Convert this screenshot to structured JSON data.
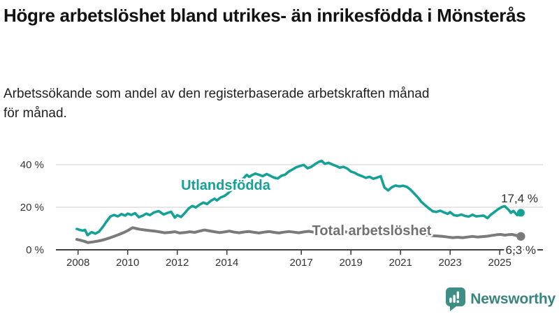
{
  "chart_data": {
    "type": "line",
    "title": "Högre arbetslöshet bland utrikes- än inrikesfödda i Mönsterås",
    "subtitle": "Arbetssökande som andel av den registerbaserade arbetskraften månad för månad.",
    "grid": "horizontal",
    "x_axis": {
      "ticks": [
        2008,
        2010,
        2012,
        2014,
        2017,
        2019,
        2021,
        2023,
        2025
      ],
      "range": [
        2007.9,
        2026.2
      ]
    },
    "y_axis": {
      "ticks": [
        0,
        20,
        40
      ],
      "tick_labels": [
        "0 %",
        "20 %",
        "40 %"
      ],
      "range": [
        0,
        44
      ],
      "unit": "%"
    },
    "series": [
      {
        "name": "Utlandsfödda",
        "color": "#15A195",
        "end_label": "17,4 %",
        "end_value": 17.4,
        "points": [
          [
            2007.95,
            9.8
          ],
          [
            2008.08,
            9.3
          ],
          [
            2008.2,
            9.0
          ],
          [
            2008.28,
            9.4
          ],
          [
            2008.38,
            6.9
          ],
          [
            2008.55,
            8.3
          ],
          [
            2008.7,
            7.6
          ],
          [
            2008.85,
            8.6
          ],
          [
            2009.0,
            10.8
          ],
          [
            2009.15,
            13.3
          ],
          [
            2009.3,
            15.6
          ],
          [
            2009.45,
            16.4
          ],
          [
            2009.6,
            15.7
          ],
          [
            2009.75,
            16.8
          ],
          [
            2009.9,
            16.1
          ],
          [
            2010.0,
            17.0
          ],
          [
            2010.15,
            16.4
          ],
          [
            2010.3,
            17.2
          ],
          [
            2010.45,
            15.3
          ],
          [
            2010.6,
            16.0
          ],
          [
            2010.75,
            17.0
          ],
          [
            2010.9,
            16.3
          ],
          [
            2011.05,
            17.5
          ],
          [
            2011.25,
            18.2
          ],
          [
            2011.45,
            16.6
          ],
          [
            2011.6,
            17.3
          ],
          [
            2011.75,
            17.9
          ],
          [
            2011.9,
            15.1
          ],
          [
            2012.0,
            16.3
          ],
          [
            2012.15,
            15.4
          ],
          [
            2012.3,
            17.2
          ],
          [
            2012.45,
            19.3
          ],
          [
            2012.6,
            20.6
          ],
          [
            2012.75,
            19.9
          ],
          [
            2012.9,
            21.2
          ],
          [
            2013.05,
            22.2
          ],
          [
            2013.2,
            21.5
          ],
          [
            2013.35,
            23.0
          ],
          [
            2013.5,
            24.0
          ],
          [
            2013.6,
            23.2
          ],
          [
            2013.75,
            24.6
          ],
          [
            2013.9,
            25.3
          ],
          [
            2014.05,
            26.6
          ],
          [
            2014.2,
            28.3
          ],
          [
            2014.4,
            30.6
          ],
          [
            2014.6,
            32.8
          ],
          [
            2014.8,
            35.2
          ],
          [
            2014.9,
            34.3
          ],
          [
            2015.0,
            35.0
          ],
          [
            2015.15,
            35.8
          ],
          [
            2015.3,
            35.2
          ],
          [
            2015.45,
            34.6
          ],
          [
            2015.6,
            35.6
          ],
          [
            2015.75,
            34.8
          ],
          [
            2015.9,
            33.9
          ],
          [
            2016.05,
            33.5
          ],
          [
            2016.2,
            34.8
          ],
          [
            2016.35,
            35.3
          ],
          [
            2016.5,
            36.8
          ],
          [
            2016.65,
            37.8
          ],
          [
            2016.8,
            38.8
          ],
          [
            2016.95,
            39.4
          ],
          [
            2017.1,
            39.9
          ],
          [
            2017.25,
            38.3
          ],
          [
            2017.4,
            39.0
          ],
          [
            2017.55,
            40.2
          ],
          [
            2017.7,
            41.3
          ],
          [
            2017.82,
            41.8
          ],
          [
            2017.95,
            40.4
          ],
          [
            2018.1,
            40.9
          ],
          [
            2018.25,
            40.1
          ],
          [
            2018.4,
            39.4
          ],
          [
            2018.55,
            38.6
          ],
          [
            2018.7,
            39.0
          ],
          [
            2018.85,
            38.2
          ],
          [
            2019.0,
            36.8
          ],
          [
            2019.15,
            36.2
          ],
          [
            2019.3,
            35.2
          ],
          [
            2019.45,
            34.6
          ],
          [
            2019.6,
            33.8
          ],
          [
            2019.75,
            34.3
          ],
          [
            2019.9,
            33.4
          ],
          [
            2020.05,
            33.9
          ],
          [
            2020.2,
            34.6
          ],
          [
            2020.35,
            29.3
          ],
          [
            2020.5,
            27.9
          ],
          [
            2020.65,
            29.4
          ],
          [
            2020.8,
            30.2
          ],
          [
            2020.95,
            29.8
          ],
          [
            2021.1,
            30.1
          ],
          [
            2021.25,
            29.6
          ],
          [
            2021.4,
            28.3
          ],
          [
            2021.55,
            26.5
          ],
          [
            2021.7,
            24.6
          ],
          [
            2021.85,
            22.4
          ],
          [
            2022.0,
            20.9
          ],
          [
            2022.15,
            19.4
          ],
          [
            2022.3,
            18.1
          ],
          [
            2022.45,
            17.8
          ],
          [
            2022.6,
            18.4
          ],
          [
            2022.75,
            17.6
          ],
          [
            2022.9,
            16.9
          ],
          [
            2023.0,
            17.7
          ],
          [
            2023.15,
            16.3
          ],
          [
            2023.3,
            16.0
          ],
          [
            2023.45,
            16.6
          ],
          [
            2023.6,
            15.9
          ],
          [
            2023.75,
            15.6
          ],
          [
            2023.9,
            16.5
          ],
          [
            2024.05,
            15.7
          ],
          [
            2024.2,
            15.9
          ],
          [
            2024.35,
            16.1
          ],
          [
            2024.5,
            14.9
          ],
          [
            2024.65,
            16.6
          ],
          [
            2024.8,
            17.9
          ],
          [
            2024.95,
            19.2
          ],
          [
            2025.1,
            20.2
          ],
          [
            2025.2,
            20.5
          ],
          [
            2025.35,
            18.9
          ],
          [
            2025.45,
            17.4
          ],
          [
            2025.55,
            18.3
          ],
          [
            2025.7,
            16.3
          ],
          [
            2025.85,
            17.4
          ]
        ]
      },
      {
        "name": "Total arbetslöshet",
        "color": "#7A7A7A",
        "end_label": "6,3 %",
        "end_value": 6.3,
        "points": [
          [
            2007.95,
            4.9
          ],
          [
            2008.1,
            4.5
          ],
          [
            2008.25,
            4.0
          ],
          [
            2008.4,
            3.4
          ],
          [
            2008.6,
            3.7
          ],
          [
            2008.8,
            4.1
          ],
          [
            2009.0,
            4.6
          ],
          [
            2009.2,
            5.3
          ],
          [
            2009.4,
            6.1
          ],
          [
            2009.6,
            7.0
          ],
          [
            2009.8,
            7.9
          ],
          [
            2010.0,
            9.0
          ],
          [
            2010.2,
            10.4
          ],
          [
            2010.35,
            10.0
          ],
          [
            2010.5,
            9.6
          ],
          [
            2010.7,
            9.3
          ],
          [
            2010.9,
            9.0
          ],
          [
            2011.1,
            8.8
          ],
          [
            2011.3,
            8.4
          ],
          [
            2011.5,
            8.0
          ],
          [
            2011.7,
            8.2
          ],
          [
            2011.9,
            8.5
          ],
          [
            2012.1,
            7.9
          ],
          [
            2012.3,
            8.1
          ],
          [
            2012.5,
            8.5
          ],
          [
            2012.7,
            8.2
          ],
          [
            2012.9,
            8.8
          ],
          [
            2013.1,
            9.3
          ],
          [
            2013.3,
            8.9
          ],
          [
            2013.5,
            8.5
          ],
          [
            2013.7,
            8.1
          ],
          [
            2013.9,
            8.4
          ],
          [
            2014.1,
            8.8
          ],
          [
            2014.3,
            8.3
          ],
          [
            2014.5,
            8.0
          ],
          [
            2014.7,
            8.4
          ],
          [
            2014.9,
            8.6
          ],
          [
            2015.1,
            8.2
          ],
          [
            2015.3,
            7.9
          ],
          [
            2015.5,
            8.3
          ],
          [
            2015.7,
            8.6
          ],
          [
            2015.9,
            8.2
          ],
          [
            2016.1,
            7.9
          ],
          [
            2016.3,
            8.3
          ],
          [
            2016.5,
            8.6
          ],
          [
            2016.7,
            8.3
          ],
          [
            2016.9,
            8.0
          ],
          [
            2017.1,
            8.4
          ],
          [
            2017.3,
            8.7
          ],
          [
            2017.5,
            8.3
          ],
          [
            2017.7,
            8.1
          ],
          [
            2017.9,
            8.5
          ],
          [
            2018.1,
            8.2
          ],
          [
            2018.3,
            7.9
          ],
          [
            2018.5,
            8.3
          ],
          [
            2018.7,
            8.6
          ],
          [
            2018.9,
            8.2
          ],
          [
            2019.1,
            8.0
          ],
          [
            2019.3,
            8.3
          ],
          [
            2019.6,
            8.1
          ],
          [
            2019.9,
            8.4
          ],
          [
            2020.1,
            8.8
          ],
          [
            2020.3,
            9.4
          ],
          [
            2020.5,
            9.1
          ],
          [
            2020.7,
            9.3
          ],
          [
            2020.9,
            9.0
          ],
          [
            2021.1,
            8.8
          ],
          [
            2021.3,
            8.5
          ],
          [
            2021.5,
            8.1
          ],
          [
            2021.7,
            7.7
          ],
          [
            2021.9,
            7.3
          ],
          [
            2022.1,
            6.9
          ],
          [
            2022.3,
            6.6
          ],
          [
            2022.5,
            6.5
          ],
          [
            2022.7,
            6.3
          ],
          [
            2022.9,
            6.0
          ],
          [
            2023.1,
            5.7
          ],
          [
            2023.3,
            5.9
          ],
          [
            2023.5,
            5.7
          ],
          [
            2023.7,
            6.0
          ],
          [
            2023.9,
            6.3
          ],
          [
            2024.1,
            6.0
          ],
          [
            2024.3,
            6.2
          ],
          [
            2024.5,
            6.4
          ],
          [
            2024.7,
            6.8
          ],
          [
            2024.9,
            7.1
          ],
          [
            2025.05,
            7.2
          ],
          [
            2025.2,
            6.9
          ],
          [
            2025.35,
            7.1
          ],
          [
            2025.5,
            7.2
          ],
          [
            2025.65,
            6.8
          ],
          [
            2025.85,
            6.3
          ]
        ]
      }
    ]
  },
  "footer": {
    "brand": "Newsworthy",
    "logo_icon": "newsworthy-bubble-barchart-icon",
    "brand_color": "#3B837E",
    "icon_color": "#3E8E85"
  }
}
